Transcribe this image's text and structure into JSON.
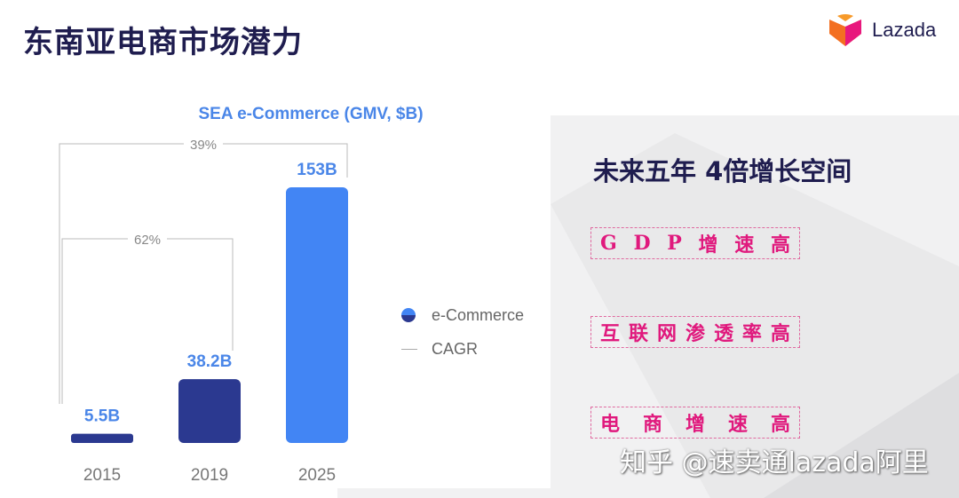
{
  "page_title": "东南亚电商市场潜力",
  "logo_text": "Lazada",
  "right_panel": {
    "title": "未来五年  4倍增长空间",
    "highlights": [
      [
        "G",
        "D",
        "P",
        "增",
        "速",
        "高"
      ],
      [
        "互",
        "联",
        "网",
        "渗",
        "透",
        "率",
        "高"
      ],
      [
        "电",
        "商",
        "增",
        "速",
        "高"
      ]
    ]
  },
  "watermark": "知乎 @速卖通lazada阿里",
  "chart_data": {
    "type": "bar",
    "title": "SEA e-Commerce (GMV, $B)",
    "categories": [
      "2015",
      "2019",
      "2025"
    ],
    "series": [
      {
        "name": "e-Commerce",
        "values": [
          5.5,
          38.2,
          153
        ]
      }
    ],
    "data_labels": [
      "5.5B",
      "38.2B",
      "153B"
    ],
    "bar_colors": [
      "#2b3990",
      "#2b3990",
      "#4285f4"
    ],
    "annotations": [
      {
        "type": "CAGR",
        "from": "2015",
        "to": "2019",
        "label": "62%"
      },
      {
        "type": "CAGR",
        "from": "2015",
        "to": "2025",
        "label": "39%"
      }
    ],
    "legend": [
      "e-Commerce",
      "CAGR"
    ],
    "legend_position": "right",
    "grid": false,
    "ylim": [
      0,
      153
    ]
  }
}
